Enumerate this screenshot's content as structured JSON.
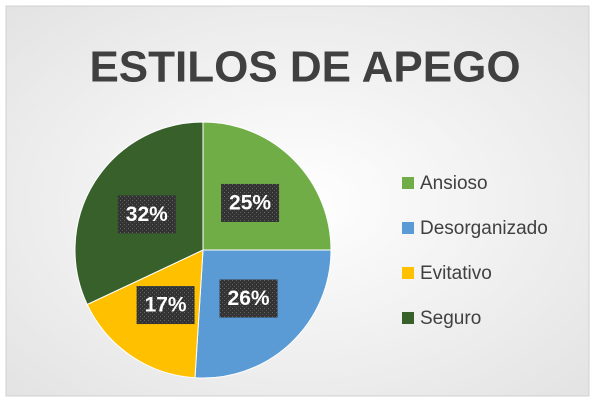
{
  "chart_data": {
    "type": "pie",
    "title": "ESTILOS DE APEGO",
    "categories": [
      "Ansioso",
      "Desorganizado",
      "Evitativo",
      "Seguro"
    ],
    "values": [
      25,
      26,
      17,
      32
    ],
    "value_labels": [
      "25%",
      "26%",
      "17%",
      "32%"
    ],
    "colors": [
      "#70ad47",
      "#5b9bd5",
      "#ffc000",
      "#38602b"
    ],
    "legend": "right"
  }
}
